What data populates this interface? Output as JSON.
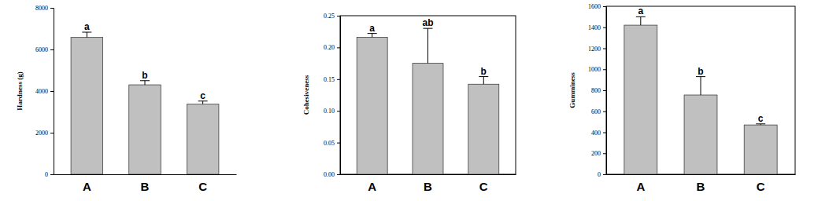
{
  "chart_data": [
    {
      "type": "bar",
      "y_label": "Hardness (g)",
      "categories": [
        "A",
        "B",
        "C"
      ],
      "values": [
        6580,
        4300,
        3370
      ],
      "errors": [
        250,
        200,
        150
      ],
      "annotations": [
        "a",
        "b",
        "c"
      ],
      "color": "#c0c0c0",
      "ylim": [
        0,
        8000
      ],
      "yticks": [
        0,
        2000,
        4000,
        6000,
        8000
      ]
    },
    {
      "type": "bar",
      "y_label": "Cohesiveness",
      "categories": [
        "A",
        "B",
        "C"
      ],
      "values": [
        0.216,
        0.175,
        0.142
      ],
      "errors": [
        0.006,
        0.055,
        0.012
      ],
      "annotations": [
        "a",
        "ab",
        "b"
      ],
      "color": "#c0c0c0",
      "ylim": [
        0,
        0.25
      ],
      "yticks": [
        {
          "value": 0,
          "label": "0.00"
        },
        {
          "value": 0.05,
          "label": "0.05"
        },
        {
          "value": 0.1,
          "label": "0.10"
        },
        {
          "value": 0.15,
          "label": "0.15"
        },
        {
          "value": 0.2,
          "label": "0.20"
        },
        {
          "value": 0.25,
          "label": "0.25"
        }
      ]
    },
    {
      "type": "bar",
      "y_label": "Gumminess",
      "categories": [
        "A",
        "B",
        "C"
      ],
      "values": [
        1420,
        755,
        470
      ],
      "errors": [
        80,
        175,
        10
      ],
      "annotations": [
        "a",
        "b",
        "c"
      ],
      "color": "#c0c0c0",
      "ylim": [
        0,
        1600
      ],
      "yticks": [
        0,
        200,
        400,
        600,
        800,
        1000,
        1200,
        1400,
        1600
      ]
    }
  ]
}
